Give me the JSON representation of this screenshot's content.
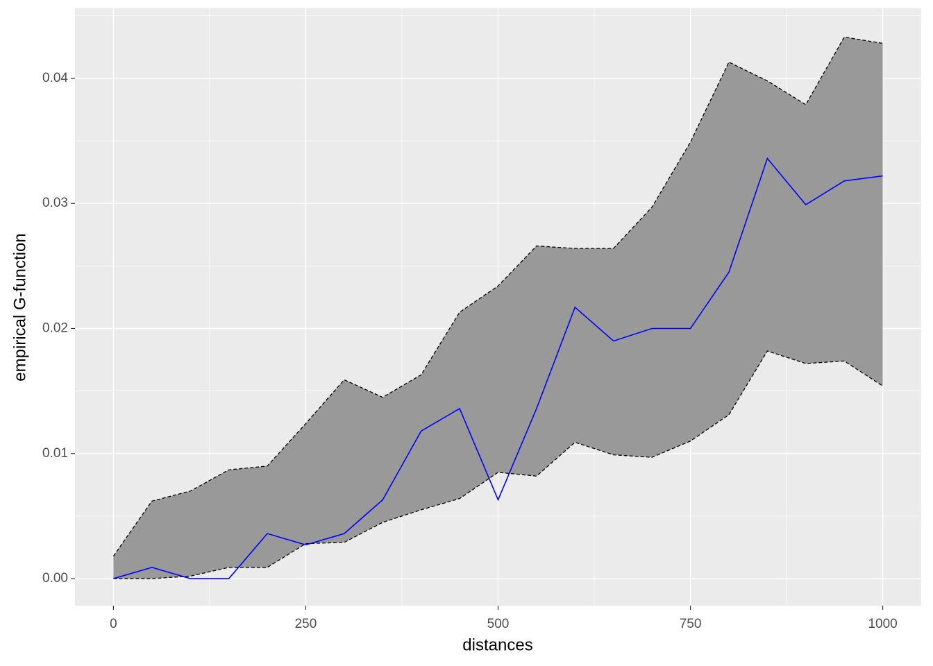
{
  "chart_data": {
    "type": "line",
    "x_label": "distances",
    "y_label": "empirical G-function",
    "x": [
      0,
      50,
      100,
      150,
      200,
      250,
      300,
      350,
      400,
      450,
      500,
      550,
      600,
      650,
      700,
      750,
      800,
      850,
      900,
      950,
      1000
    ],
    "series": [
      {
        "color": "#0000ff",
        "values": [
          0,
          0.0009,
          0,
          0,
          0.0036,
          0.0027,
          0.0036,
          0.0063,
          0.0118,
          0.0136,
          0.0063,
          0.0136,
          0.0217,
          0.019,
          0.02,
          0.02,
          0.0245,
          0.0336,
          0.0299,
          0.0318,
          0.0322
        ]
      }
    ],
    "band": {
      "fill": "#999999",
      "line_color": "#000000",
      "upper": [
        0.0018,
        0.0062,
        0.007,
        0.0087,
        0.009,
        0.0124,
        0.0159,
        0.0145,
        0.0163,
        0.0213,
        0.0234,
        0.0266,
        0.0264,
        0.0264,
        0.0297,
        0.0349,
        0.0413,
        0.0398,
        0.0379,
        0.0433,
        0.0428
      ],
      "lower": [
        0,
        0,
        0.0002,
        0.0009,
        0.0009,
        0.0028,
        0.0029,
        0.0045,
        0.0055,
        0.0064,
        0.0085,
        0.0082,
        0.0109,
        0.0099,
        0.0097,
        0.011,
        0.0131,
        0.0182,
        0.0172,
        0.0174,
        0.0154
      ]
    },
    "xlim": [
      -50,
      1050
    ],
    "ylim": [
      -0.00216,
      0.0456
    ],
    "xticks": [
      0,
      250,
      500,
      750,
      1000
    ],
    "yticks": [
      {
        "value": 0,
        "label": "0.00"
      },
      {
        "value": 0.01,
        "label": "0.01"
      },
      {
        "value": 0.02,
        "label": "0.02"
      },
      {
        "value": 0.03,
        "label": "0.03"
      },
      {
        "value": 0.04,
        "label": "0.04"
      }
    ],
    "xminor": [
      125,
      375,
      625,
      875
    ],
    "yminor": [
      0.005,
      0.015,
      0.025,
      0.035,
      0.045
    ],
    "grid": true
  }
}
